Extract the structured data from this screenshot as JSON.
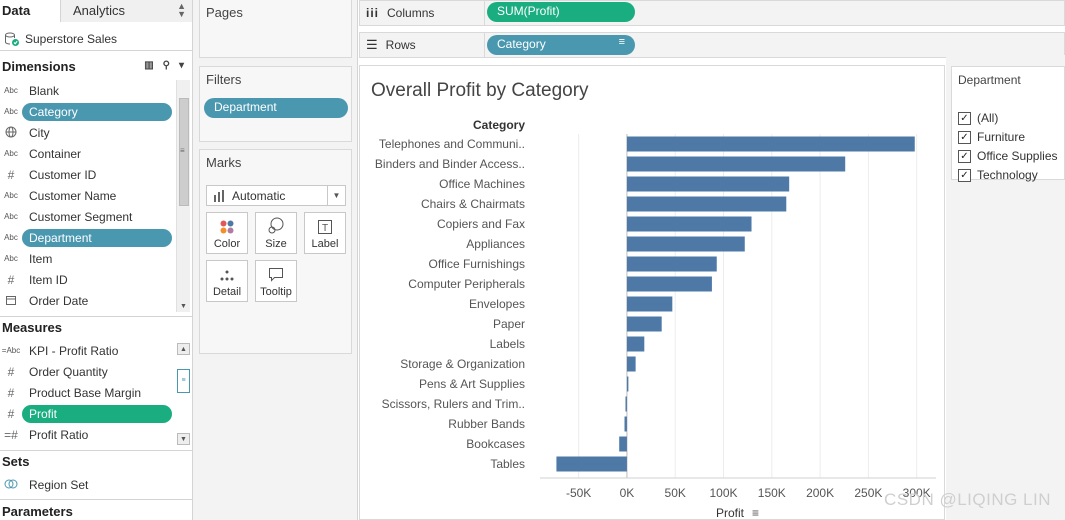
{
  "tabs": {
    "data": "Data",
    "analytics": "Analytics"
  },
  "datasource": "Superstore Sales",
  "dimensions": {
    "header": "Dimensions",
    "fields": [
      {
        "type": "Abc",
        "name": "Blank"
      },
      {
        "type": "Abc",
        "name": "Category"
      },
      {
        "type": "globe",
        "name": "City"
      },
      {
        "type": "Abc",
        "name": "Container"
      },
      {
        "type": "#",
        "name": "Customer ID"
      },
      {
        "type": "Abc",
        "name": "Customer Name"
      },
      {
        "type": "Abc",
        "name": "Customer Segment"
      },
      {
        "type": "Abc",
        "name": "Department"
      },
      {
        "type": "Abc",
        "name": "Item"
      },
      {
        "type": "#",
        "name": "Item ID"
      },
      {
        "type": "date",
        "name": "Order Date"
      }
    ]
  },
  "measures": {
    "header": "Measures",
    "fields": [
      {
        "type": "=Abc",
        "name": "KPI - Profit Ratio"
      },
      {
        "type": "#",
        "name": "Order Quantity"
      },
      {
        "type": "#",
        "name": "Product Base Margin"
      },
      {
        "type": "#",
        "name": "Profit"
      },
      {
        "type": "=#",
        "name": "Profit Ratio"
      }
    ]
  },
  "sets": {
    "header": "Sets",
    "fields": [
      {
        "type": "set",
        "name": "Region Set"
      }
    ]
  },
  "parameters": {
    "header": "Parameters"
  },
  "cards": {
    "pages": "Pages",
    "filters": "Filters",
    "filter_pill": "Department",
    "marks": "Marks",
    "marks_type": "Automatic",
    "mark_buttons": [
      "Color",
      "Size",
      "Label",
      "Detail",
      "Tooltip"
    ]
  },
  "shelves": {
    "columns_label": "Columns",
    "columns_pill": "SUM(Profit)",
    "rows_label": "Rows",
    "rows_pill": "Category"
  },
  "quick_filter": {
    "title": "Department",
    "items": [
      "(All)",
      "Furniture",
      "Office Supplies",
      "Technology"
    ]
  },
  "watermark": "CSDN @LIQING LIN",
  "chart_data": {
    "type": "bar",
    "orientation": "horizontal",
    "title": "Overall Profit by Category",
    "row_header": "Category",
    "xlabel": "Profit",
    "categories": [
      "Telephones and Communi..",
      "Binders and Binder Access..",
      "Office Machines",
      "Chairs & Chairmats",
      "Copiers and Fax",
      "Appliances",
      "Office Furnishings",
      "Computer Peripherals",
      "Envelopes",
      "Paper",
      "Labels",
      "Storage & Organization",
      "Pens & Art Supplies",
      "Scissors, Rulers and Trim..",
      "Rubber Bands",
      "Bookcases",
      "Tables"
    ],
    "values": [
      298000,
      226000,
      168000,
      165000,
      129000,
      122000,
      93000,
      88000,
      47000,
      36000,
      18000,
      9000,
      1500,
      -1500,
      -2500,
      -8000,
      -73000
    ],
    "xlim": [
      -90000,
      320000
    ],
    "xticks": [
      -50000,
      0,
      50000,
      100000,
      150000,
      200000,
      250000,
      300000
    ],
    "xtick_labels": [
      "-50K",
      "0K",
      "50K",
      "100K",
      "150K",
      "200K",
      "250K",
      "300K"
    ],
    "bar_color": "#4e79a7",
    "grid": true
  }
}
